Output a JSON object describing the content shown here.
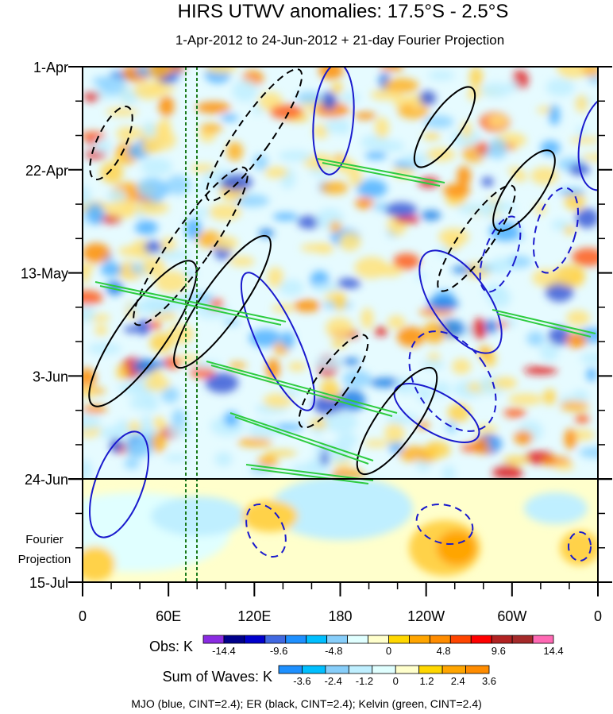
{
  "chart_data": {
    "type": "heatmap",
    "title": "HIRS UTWV anomalies: 17.5°S - 2.5°S",
    "subtitle": "1-Apr-2012 to 24-Jun-2012 + 21-day Fourier Projection",
    "y_tick_labels": [
      "1-Apr",
      "22-Apr",
      "13-May",
      "3-Jun",
      "24-Jun",
      "15-Jul"
    ],
    "y_extra_label": [
      "Fourier",
      "Projection"
    ],
    "x_tick_labels": [
      "0",
      "60E",
      "120E",
      "180",
      "120W",
      "60W",
      "0"
    ],
    "x_lon_east": [
      0,
      360
    ],
    "y_days": [
      0,
      105
    ],
    "obs_end_day": 84,
    "reference_lons": [
      72.5,
      80
    ],
    "obs_colorbar": {
      "label": "Obs: K",
      "tick_labels": [
        "-14.4",
        "-9.6",
        "-4.8",
        "0",
        "4.8",
        "9.6",
        "14.4"
      ],
      "colors": [
        "#8a2be2",
        "#00008b",
        "#0000cd",
        "#4169e1",
        "#1e90ff",
        "#00bfff",
        "#87cefa",
        "#e0ffff",
        "#ffffcc",
        "#ffd700",
        "#ffa500",
        "#ff8c00",
        "#ff4500",
        "#ff0000",
        "#b22222",
        "#a52a2a",
        "#ff69b4"
      ]
    },
    "waves_colorbar": {
      "label": "Sum of Waves: K",
      "tick_labels": [
        "-3.6",
        "-2.4",
        "-1.2",
        "0",
        "1.2",
        "2.4",
        "3.6"
      ],
      "colors": [
        "#1e90ff",
        "#00bfff",
        "#87cefa",
        "#bfefff",
        "#e0ffff",
        "#ffffcc",
        "#ffd700",
        "#ffa500",
        "#ff8c00"
      ]
    },
    "contour_legend": "MJO (blue, CINT=2.4); ER (black, CINT=2.4); Kelvin (green, CINT=2.4)",
    "series_colors": {
      "mjo": "#1a1acd",
      "er": "#000000",
      "kelvin": "#2ecc40"
    }
  }
}
